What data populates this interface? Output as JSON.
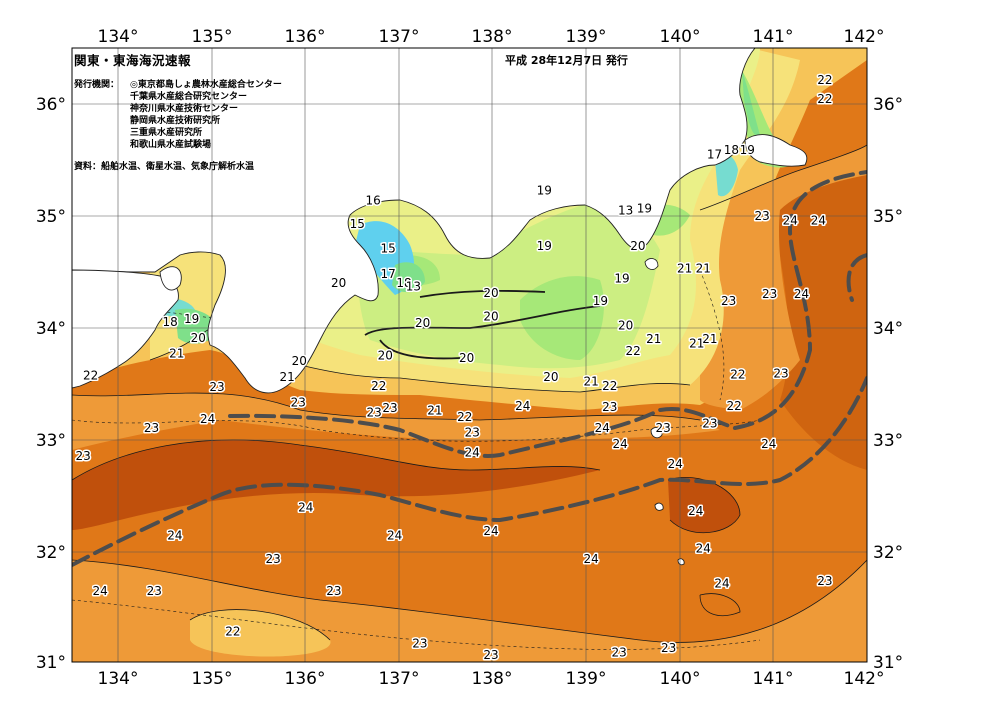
{
  "header": {
    "title": "関東・東海海況速報",
    "issue_date": "平成  28年12月7日  発行",
    "issuers_label": "発行機関：",
    "issuers": [
      "◎東京都島しょ農林水産総合センター",
      "千葉県水産総合研究センター",
      "神奈川県水産技術センター",
      "静岡県水産技術研究所",
      "三重県水産研究所",
      "和歌山県水産試験場"
    ],
    "source": "資料：船舶水温、衛星水温、気象庁解析水温"
  },
  "axes": {
    "lon_ticks": [
      "134°",
      "135°",
      "136°",
      "137°",
      "138°",
      "139°",
      "140°",
      "141°",
      "142°"
    ],
    "lat_ticks": [
      "36°",
      "35°",
      "34°",
      "33°",
      "32°",
      "31°"
    ]
  },
  "map": {
    "lon_range": [
      133.5,
      142
    ],
    "lat_range": [
      31,
      36.5
    ],
    "colors": {
      "land": "#ffffff",
      "t15": "#5fd0ee",
      "t16": "#76dcd0",
      "t17": "#7fe08a",
      "t18": "#a6e878",
      "t19": "#ccee82",
      "t20": "#eaf088",
      "t21": "#f6e27a",
      "t22": "#f6c458",
      "t23": "#ee9a38",
      "t24": "#e07818",
      "t24_warm": "#cf6410",
      "t25": "#c0500c",
      "kuroshio_axis": "#4d4d4d"
    }
  },
  "isotherm_labels": [
    {
      "lon": 141.55,
      "lat": 36.21,
      "text": "22"
    },
    {
      "lon": 141.55,
      "lat": 36.04,
      "text": "22"
    },
    {
      "lon": 140.37,
      "lat": 35.54,
      "text": "17"
    },
    {
      "lon": 140.55,
      "lat": 35.58,
      "text": "18"
    },
    {
      "lon": 140.72,
      "lat": 35.58,
      "text": "19"
    },
    {
      "lon": 136.72,
      "lat": 35.13,
      "text": "16"
    },
    {
      "lon": 136.55,
      "lat": 34.92,
      "text": "15"
    },
    {
      "lon": 136.88,
      "lat": 34.7,
      "text": "15"
    },
    {
      "lon": 136.88,
      "lat": 34.47,
      "text": "17"
    },
    {
      "lon": 137.05,
      "lat": 34.39,
      "text": "18"
    },
    {
      "lon": 137.15,
      "lat": 34.36,
      "text": "13"
    },
    {
      "lon": 138.55,
      "lat": 35.22,
      "text": "19"
    },
    {
      "lon": 138.55,
      "lat": 34.72,
      "text": "19"
    },
    {
      "lon": 139.42,
      "lat": 35.04,
      "text": "13"
    },
    {
      "lon": 139.62,
      "lat": 35.06,
      "text": "19"
    },
    {
      "lon": 139.55,
      "lat": 34.72,
      "text": "20"
    },
    {
      "lon": 139.38,
      "lat": 34.43,
      "text": "19"
    },
    {
      "lon": 139.15,
      "lat": 34.23,
      "text": "19"
    },
    {
      "lon": 140.05,
      "lat": 34.52,
      "text": "21"
    },
    {
      "lon": 136.35,
      "lat": 34.39,
      "text": "20"
    },
    {
      "lon": 134.78,
      "lat": 34.07,
      "text": "19"
    },
    {
      "lon": 134.55,
      "lat": 34.04,
      "text": "18"
    },
    {
      "lon": 134.85,
      "lat": 33.9,
      "text": "20"
    },
    {
      "lon": 134.62,
      "lat": 33.76,
      "text": "21"
    },
    {
      "lon": 133.7,
      "lat": 33.56,
      "text": "22"
    },
    {
      "lon": 137.98,
      "lat": 34.3,
      "text": "20"
    },
    {
      "lon": 137.98,
      "lat": 34.09,
      "text": "20"
    },
    {
      "lon": 137.25,
      "lat": 34.03,
      "text": "20"
    },
    {
      "lon": 136.85,
      "lat": 33.74,
      "text": "20"
    },
    {
      "lon": 137.72,
      "lat": 33.72,
      "text": "20"
    },
    {
      "lon": 138.62,
      "lat": 33.55,
      "text": "20"
    },
    {
      "lon": 139.42,
      "lat": 34.01,
      "text": "20"
    },
    {
      "lon": 139.72,
      "lat": 33.89,
      "text": "21"
    },
    {
      "lon": 140.18,
      "lat": 33.85,
      "text": "21"
    },
    {
      "lon": 139.5,
      "lat": 33.78,
      "text": "22"
    },
    {
      "lon": 139.05,
      "lat": 33.51,
      "text": "21"
    },
    {
      "lon": 139.25,
      "lat": 33.47,
      "text": "22"
    },
    {
      "lon": 135.93,
      "lat": 33.69,
      "text": "20"
    },
    {
      "lon": 135.8,
      "lat": 33.55,
      "text": "21"
    },
    {
      "lon": 136.78,
      "lat": 33.47,
      "text": "22"
    },
    {
      "lon": 136.73,
      "lat": 33.23,
      "text": "23"
    },
    {
      "lon": 136.9,
      "lat": 33.27,
      "text": "23"
    },
    {
      "lon": 137.38,
      "lat": 33.25,
      "text": "21"
    },
    {
      "lon": 135.92,
      "lat": 33.32,
      "text": "23"
    },
    {
      "lon": 135.05,
      "lat": 33.46,
      "text": "23"
    },
    {
      "lon": 134.35,
      "lat": 33.09,
      "text": "23"
    },
    {
      "lon": 133.62,
      "lat": 32.84,
      "text": "23"
    },
    {
      "lon": 134.95,
      "lat": 33.17,
      "text": "24"
    },
    {
      "lon": 137.7,
      "lat": 33.19,
      "text": "22"
    },
    {
      "lon": 137.78,
      "lat": 33.05,
      "text": "23"
    },
    {
      "lon": 138.32,
      "lat": 33.29,
      "text": "24"
    },
    {
      "lon": 137.78,
      "lat": 32.87,
      "text": "24"
    },
    {
      "lon": 139.25,
      "lat": 33.28,
      "text": "23"
    },
    {
      "lon": 139.17,
      "lat": 33.09,
      "text": "24"
    },
    {
      "lon": 139.36,
      "lat": 32.95,
      "text": "24"
    },
    {
      "lon": 139.82,
      "lat": 33.09,
      "text": "23"
    },
    {
      "lon": 140.32,
      "lat": 33.13,
      "text": "23"
    },
    {
      "lon": 140.58,
      "lat": 33.29,
      "text": "22"
    },
    {
      "lon": 140.62,
      "lat": 33.57,
      "text": "22"
    },
    {
      "lon": 141.08,
      "lat": 33.58,
      "text": "23"
    },
    {
      "lon": 140.95,
      "lat": 32.95,
      "text": "24"
    },
    {
      "lon": 139.95,
      "lat": 32.77,
      "text": "24"
    },
    {
      "lon": 140.88,
      "lat": 34.99,
      "text": "23"
    },
    {
      "lon": 141.18,
      "lat": 34.95,
      "text": "24"
    },
    {
      "lon": 141.48,
      "lat": 34.95,
      "text": "24"
    },
    {
      "lon": 140.52,
      "lat": 34.23,
      "text": "23"
    },
    {
      "lon": 140.96,
      "lat": 34.29,
      "text": "23"
    },
    {
      "lon": 141.3,
      "lat": 34.29,
      "text": "24"
    },
    {
      "lon": 140.25,
      "lat": 34.52,
      "text": "21"
    },
    {
      "lon": 140.32,
      "lat": 33.89,
      "text": "21"
    },
    {
      "lon": 140.17,
      "lat": 32.35,
      "text": "24"
    },
    {
      "lon": 140.25,
      "lat": 32.01,
      "text": "24"
    },
    {
      "lon": 140.45,
      "lat": 31.7,
      "text": "24"
    },
    {
      "lon": 141.55,
      "lat": 31.72,
      "text": "23"
    },
    {
      "lon": 136.0,
      "lat": 32.38,
      "text": "24"
    },
    {
      "lon": 134.6,
      "lat": 32.13,
      "text": "24"
    },
    {
      "lon": 136.95,
      "lat": 32.13,
      "text": "24"
    },
    {
      "lon": 137.98,
      "lat": 32.17,
      "text": "24"
    },
    {
      "lon": 139.05,
      "lat": 31.92,
      "text": "24"
    },
    {
      "lon": 135.65,
      "lat": 31.92,
      "text": "23"
    },
    {
      "lon": 134.38,
      "lat": 31.63,
      "text": "23"
    },
    {
      "lon": 136.3,
      "lat": 31.63,
      "text": "23"
    },
    {
      "lon": 133.8,
      "lat": 31.63,
      "text": "24"
    },
    {
      "lon": 135.22,
      "lat": 31.27,
      "text": "22"
    },
    {
      "lon": 137.22,
      "lat": 31.16,
      "text": "23"
    },
    {
      "lon": 139.35,
      "lat": 31.08,
      "text": "23"
    },
    {
      "lon": 137.98,
      "lat": 31.06,
      "text": "23"
    },
    {
      "lon": 139.88,
      "lat": 31.12,
      "text": "23"
    }
  ]
}
